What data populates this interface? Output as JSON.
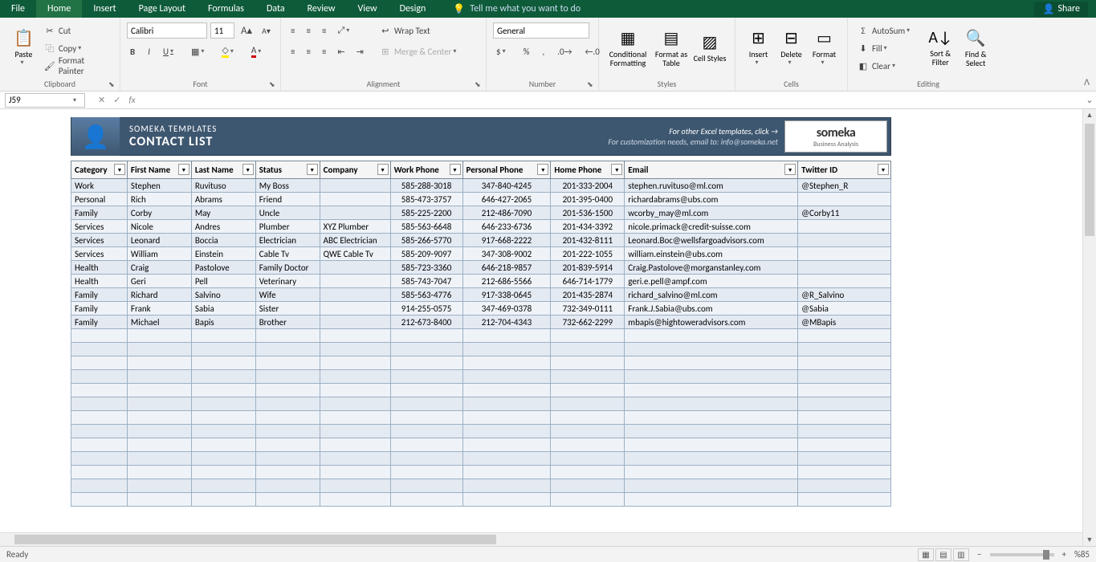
{
  "app": {
    "share": "Share",
    "tell_me": "Tell me what you want to do"
  },
  "tabs": {
    "file": "File",
    "home": "Home",
    "insert": "Insert",
    "page_layout": "Page Layout",
    "formulas": "Formulas",
    "data": "Data",
    "review": "Review",
    "view": "View",
    "design": "Design"
  },
  "ribbon": {
    "clipboard": {
      "label": "Clipboard",
      "paste": "Paste",
      "cut": "Cut",
      "copy": "Copy",
      "format_painter": "Format Painter"
    },
    "font": {
      "label": "Font",
      "name": "Calibri",
      "size": "11"
    },
    "alignment": {
      "label": "Alignment",
      "wrap": "Wrap Text",
      "merge": "Merge & Center"
    },
    "number": {
      "label": "Number",
      "format": "General"
    },
    "styles": {
      "label": "Styles",
      "cond": "Conditional\nFormatting",
      "table": "Format as\nTable",
      "cell": "Cell\nStyles"
    },
    "cells": {
      "label": "Cells",
      "insert": "Insert",
      "delete": "Delete",
      "format": "Format"
    },
    "editing": {
      "label": "Editing",
      "autosum": "AutoSum",
      "fill": "Fill",
      "clear": "Clear",
      "sort": "Sort &\nFilter",
      "find": "Find &\nSelect"
    }
  },
  "formula_bar": {
    "name_box": "J59",
    "formula": ""
  },
  "banner": {
    "subtitle": "SOMEKA TEMPLATES",
    "title": "CONTACT LIST",
    "line1": "For other Excel templates, click →",
    "line2": "For customization needs, email to: info@someka.net",
    "logo1": "someka",
    "logo2": "Business Analysis"
  },
  "table": {
    "columns": [
      "Category",
      "First Name",
      "Last Name",
      "Status",
      "Company",
      "Work Phone",
      "Personal Phone",
      "Home Phone",
      "Email",
      "Twitter ID"
    ],
    "col_classes": [
      "col-cat",
      "col-fn",
      "col-ln",
      "col-st",
      "col-co",
      "col-wp",
      "col-pp",
      "col-hp",
      "col-em",
      "col-tw"
    ],
    "center_cols": [
      5,
      6,
      7
    ],
    "rows": [
      [
        "Work",
        "Stephen",
        "Ruvituso",
        "My Boss",
        "",
        "585-288-3018",
        "347-840-4245",
        "201-333-2004",
        "stephen.ruvituso@ml.com",
        "@Stephen_R"
      ],
      [
        "Personal",
        "Rich",
        "Abrams",
        "Friend",
        "",
        "585-473-3757",
        "646-427-2065",
        "201-395-0400",
        "richardabrams@ubs.com",
        ""
      ],
      [
        "Family",
        "Corby",
        "May",
        "Uncle",
        "",
        "585-225-2200",
        "212-486-7090",
        "201-536-1500",
        "wcorby_may@ml.com",
        "@Corby11"
      ],
      [
        "Services",
        "Nicole",
        "Andres",
        "Plumber",
        "XYZ Plumber",
        "585-563-6648",
        "646-233-6736",
        "201-434-3392",
        "nicole.primack@credit-suisse.com",
        ""
      ],
      [
        "Services",
        "Leonard",
        "Boccia",
        "Electrician",
        "ABC Electrician",
        "585-266-5770",
        "917-668-2222",
        "201-432-8111",
        "Leonard.Boc@wellsfargoadvisors.com",
        ""
      ],
      [
        "Services",
        "William",
        "Einstein",
        "Cable Tv",
        "QWE Cable Tv",
        "585-209-9097",
        "347-308-9002",
        "201-222-1055",
        "william.einstein@ubs.com",
        ""
      ],
      [
        "Health",
        "Craig",
        "Pastolove",
        "Family Doctor",
        "",
        "585-723-3360",
        "646-218-9857",
        "201-839-5914",
        "Craig.Pastolove@morganstanley.com",
        ""
      ],
      [
        "Health",
        "Geri",
        "Pell",
        "Veterinary",
        "",
        "585-743-7047",
        "212-686-5566",
        "646-714-1779",
        "geri.e.pell@ampf.com",
        ""
      ],
      [
        "Family",
        "Richard",
        "Salvino",
        "Wife",
        "",
        "585-563-4776",
        "917-338-0645",
        "201-435-2874",
        "richard_salvino@ml.com",
        "@R_Salvino"
      ],
      [
        "Family",
        "Frank",
        "Sabia",
        "Sister",
        "",
        "914-255-0575",
        "347-469-0378",
        "732-349-0111",
        "Frank.J.Sabia@ubs.com",
        "@Sabia"
      ],
      [
        "Family",
        "Michael",
        "Bapis",
        "Brother",
        "",
        "212-673-8400",
        "212-704-4343",
        "732-662-2299",
        "mbapis@hightoweradvisors.com",
        "@MBapis"
      ]
    ],
    "empty_rows": 13
  },
  "status": {
    "ready": "Ready",
    "zoom": "%85"
  },
  "colors": {
    "excel_green": "#217346",
    "banner_bg": "#3e5770",
    "cell_bg": "#e4eaf2",
    "cell_border": "#9bb0c4"
  }
}
